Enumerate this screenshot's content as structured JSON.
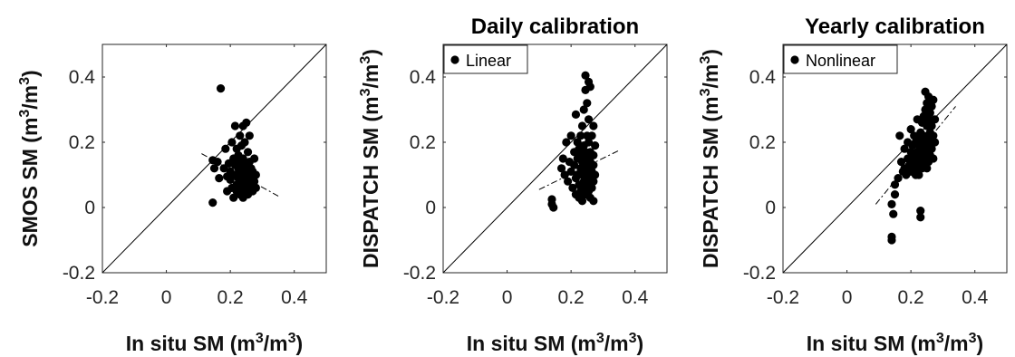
{
  "chart_data": [
    {
      "type": "scatter",
      "title": "",
      "xlabel": "In situ SM (m3/m3)",
      "xlabel_parts": {
        "base": "In situ SM (m",
        "sup1": "3",
        "mid": "/m",
        "sup2": "3",
        "end": ")"
      },
      "ylabel": "SMOS SM (m3/m3)",
      "ylabel_parts": {
        "base": "SMOS SM (m",
        "sup1": "3",
        "mid": "/m",
        "sup2": "3",
        "end": ")"
      },
      "xlim": [
        -0.2,
        0.5
      ],
      "ylim": [
        -0.2,
        0.5
      ],
      "xticks": [
        -0.2,
        0,
        0.2,
        0.4
      ],
      "xtick_labels": [
        "-0.2",
        "0",
        "0.2",
        "0.4"
      ],
      "yticks": [
        -0.2,
        0,
        0.2,
        0.4
      ],
      "ytick_labels": [
        "-0.2",
        "0",
        "0.2",
        "0.4"
      ],
      "grid": false,
      "legend": "",
      "one_to_one_line": true,
      "fit_line": {
        "x": [
          0.11,
          0.35
        ],
        "y": [
          0.165,
          0.035
        ]
      },
      "marker_color": "#000000",
      "points": [
        [
          0.17,
          0.365
        ],
        [
          0.145,
          0.015
        ],
        [
          0.145,
          0.145
        ],
        [
          0.15,
          0.12
        ],
        [
          0.16,
          0.14
        ],
        [
          0.165,
          0.09
        ],
        [
          0.18,
          0.12
        ],
        [
          0.185,
          0.18
        ],
        [
          0.19,
          0.095
        ],
        [
          0.19,
          0.05
        ],
        [
          0.195,
          0.135
        ],
        [
          0.2,
          0.085
        ],
        [
          0.2,
          0.11
        ],
        [
          0.205,
          0.2
        ],
        [
          0.205,
          0.06
        ],
        [
          0.21,
          0.15
        ],
        [
          0.21,
          0.03
        ],
        [
          0.215,
          0.25
        ],
        [
          0.215,
          0.1
        ],
        [
          0.215,
          0.13
        ],
        [
          0.22,
          0.07
        ],
        [
          0.22,
          0.18
        ],
        [
          0.22,
          0.05
        ],
        [
          0.225,
          0.12
        ],
        [
          0.225,
          0.09
        ],
        [
          0.225,
          0.16
        ],
        [
          0.23,
          0.1
        ],
        [
          0.23,
          0.04
        ],
        [
          0.23,
          0.22
        ],
        [
          0.23,
          0.14
        ],
        [
          0.235,
          0.08
        ],
        [
          0.235,
          0.19
        ],
        [
          0.235,
          0.06
        ],
        [
          0.24,
          0.25
        ],
        [
          0.24,
          0.11
        ],
        [
          0.24,
          0.03
        ],
        [
          0.24,
          0.15
        ],
        [
          0.245,
          0.07
        ],
        [
          0.245,
          0.13
        ],
        [
          0.245,
          0.2
        ],
        [
          0.25,
          0.09
        ],
        [
          0.25,
          0.05
        ],
        [
          0.25,
          0.26
        ],
        [
          0.25,
          0.12
        ],
        [
          0.255,
          0.17
        ],
        [
          0.255,
          0.08
        ],
        [
          0.255,
          0.04
        ],
        [
          0.26,
          0.1
        ],
        [
          0.26,
          0.14
        ],
        [
          0.26,
          0.06
        ],
        [
          0.26,
          0.22
        ],
        [
          0.265,
          0.09
        ],
        [
          0.265,
          0.12
        ],
        [
          0.27,
          0.07
        ],
        [
          0.27,
          0.05
        ],
        [
          0.27,
          0.11
        ],
        [
          0.275,
          0.08
        ],
        [
          0.275,
          0.15
        ],
        [
          0.28,
          0.1
        ],
        [
          0.28,
          0.06
        ]
      ]
    },
    {
      "type": "scatter",
      "title": "Daily calibration",
      "xlabel": "In situ SM (m3/m3)",
      "xlabel_parts": {
        "base": "In situ SM (m",
        "sup1": "3",
        "mid": "/m",
        "sup2": "3",
        "end": ")"
      },
      "ylabel": "DISPATCH SM (m3/m3)",
      "ylabel_parts": {
        "base": "DISPATCH SM (m",
        "sup1": "3",
        "mid": "/m",
        "sup2": "3",
        "end": ")"
      },
      "xlim": [
        -0.2,
        0.5
      ],
      "ylim": [
        -0.2,
        0.5
      ],
      "xticks": [
        -0.2,
        0,
        0.2,
        0.4
      ],
      "xtick_labels": [
        "-0.2",
        "0",
        "0.2",
        "0.4"
      ],
      "yticks": [
        -0.2,
        0,
        0.2,
        0.4
      ],
      "ytick_labels": [
        "-0.2",
        "0",
        "0.2",
        "0.4"
      ],
      "grid": false,
      "legend": "top-left",
      "legend_label": "Linear",
      "one_to_one_line": true,
      "fit_line": {
        "x": [
          0.1,
          0.35
        ],
        "y": [
          0.055,
          0.175
        ]
      },
      "marker_color": "#000000",
      "points": [
        [
          0.14,
          0.01
        ],
        [
          0.14,
          0.025
        ],
        [
          0.145,
          0.0
        ],
        [
          0.17,
          0.12
        ],
        [
          0.175,
          0.15
        ],
        [
          0.18,
          0.1
        ],
        [
          0.185,
          0.2
        ],
        [
          0.19,
          0.08
        ],
        [
          0.195,
          0.14
        ],
        [
          0.2,
          0.11
        ],
        [
          0.2,
          0.22
        ],
        [
          0.205,
          0.06
        ],
        [
          0.21,
          0.17
        ],
        [
          0.21,
          0.13
        ],
        [
          0.215,
          0.09
        ],
        [
          0.215,
          0.04
        ],
        [
          0.215,
          0.285
        ],
        [
          0.22,
          0.2
        ],
        [
          0.22,
          0.15
        ],
        [
          0.22,
          0.1
        ],
        [
          0.225,
          0.07
        ],
        [
          0.225,
          0.18
        ],
        [
          0.225,
          0.03
        ],
        [
          0.23,
          0.12
        ],
        [
          0.23,
          0.22
        ],
        [
          0.23,
          0.16
        ],
        [
          0.23,
          0.05
        ],
        [
          0.235,
          0.1
        ],
        [
          0.235,
          0.25
        ],
        [
          0.235,
          0.14
        ],
        [
          0.235,
          0.02
        ],
        [
          0.24,
          0.19
        ],
        [
          0.24,
          0.08
        ],
        [
          0.24,
          0.12
        ],
        [
          0.24,
          0.3
        ],
        [
          0.24,
          0.06
        ],
        [
          0.245,
          0.405
        ],
        [
          0.245,
          0.36
        ],
        [
          0.245,
          0.17
        ],
        [
          0.245,
          0.13
        ],
        [
          0.245,
          0.04
        ],
        [
          0.25,
          0.22
        ],
        [
          0.25,
          0.1
        ],
        [
          0.25,
          0.15
        ],
        [
          0.25,
          0.07
        ],
        [
          0.25,
          0.32
        ],
        [
          0.255,
          0.385
        ],
        [
          0.255,
          0.2
        ],
        [
          0.255,
          0.12
        ],
        [
          0.255,
          0.05
        ],
        [
          0.255,
          0.27
        ],
        [
          0.26,
          0.17
        ],
        [
          0.26,
          0.09
        ],
        [
          0.26,
          0.14
        ],
        [
          0.26,
          0.03
        ],
        [
          0.26,
          0.37
        ],
        [
          0.265,
          0.22
        ],
        [
          0.265,
          0.11
        ],
        [
          0.265,
          0.06
        ],
        [
          0.27,
          0.16
        ],
        [
          0.27,
          0.25
        ],
        [
          0.27,
          0.08
        ],
        [
          0.27,
          0.13
        ],
        [
          0.27,
          0.02
        ],
        [
          0.275,
          0.19
        ],
        [
          0.275,
          0.1
        ]
      ]
    },
    {
      "type": "scatter",
      "title": "Yearly calibration",
      "xlabel": "In situ SM (m3/m3)",
      "xlabel_parts": {
        "base": "In situ SM (m",
        "sup1": "3",
        "mid": "/m",
        "sup2": "3",
        "end": ")"
      },
      "ylabel": "DISPATCH SM (m3/m3)",
      "ylabel_parts": {
        "base": "DISPATCH SM (m",
        "sup1": "3",
        "mid": "/m",
        "sup2": "3",
        "end": ")"
      },
      "xlim": [
        -0.2,
        0.5
      ],
      "ylim": [
        -0.2,
        0.5
      ],
      "xticks": [
        -0.2,
        0,
        0.2,
        0.4
      ],
      "xtick_labels": [
        "-0.2",
        "0",
        "0.2",
        "0.4"
      ],
      "yticks": [
        -0.2,
        0,
        0.2,
        0.4
      ],
      "ytick_labels": [
        "-0.2",
        "0",
        "0.2",
        "0.4"
      ],
      "grid": false,
      "legend": "top-left",
      "legend_label": "Nonlinear",
      "one_to_one_line": true,
      "fit_line": {
        "x": [
          0.09,
          0.34
        ],
        "y": [
          0.01,
          0.31
        ]
      },
      "marker_color": "#000000",
      "points": [
        [
          0.14,
          -0.09
        ],
        [
          0.14,
          -0.1
        ],
        [
          0.145,
          -0.02
        ],
        [
          0.14,
          0.01
        ],
        [
          0.15,
          0.07
        ],
        [
          0.15,
          0.04
        ],
        [
          0.16,
          0.09
        ],
        [
          0.165,
          0.22
        ],
        [
          0.17,
          0.14
        ],
        [
          0.175,
          0.11
        ],
        [
          0.18,
          0.12
        ],
        [
          0.18,
          0.18
        ],
        [
          0.185,
          0.1
        ],
        [
          0.19,
          0.15
        ],
        [
          0.19,
          0.2
        ],
        [
          0.195,
          0.13
        ],
        [
          0.2,
          0.17
        ],
        [
          0.2,
          0.11
        ],
        [
          0.2,
          0.24
        ],
        [
          0.205,
          0.14
        ],
        [
          0.205,
          0.19
        ],
        [
          0.21,
          0.12
        ],
        [
          0.21,
          0.16
        ],
        [
          0.21,
          0.22
        ],
        [
          0.215,
          0.1
        ],
        [
          0.215,
          0.2
        ],
        [
          0.215,
          0.14
        ],
        [
          0.22,
          0.17
        ],
        [
          0.22,
          0.27
        ],
        [
          0.22,
          0.12
        ],
        [
          0.22,
          0.21
        ],
        [
          0.225,
          0.15
        ],
        [
          0.225,
          0.19
        ],
        [
          0.225,
          0.1
        ],
        [
          0.23,
          0.23
        ],
        [
          0.23,
          0.13
        ],
        [
          0.23,
          0.17
        ],
        [
          0.23,
          -0.03
        ],
        [
          0.23,
          -0.01
        ],
        [
          0.235,
          0.26
        ],
        [
          0.235,
          0.16
        ],
        [
          0.235,
          0.2
        ],
        [
          0.235,
          0.12
        ],
        [
          0.24,
          0.28
        ],
        [
          0.24,
          0.18
        ],
        [
          0.24,
          0.14
        ],
        [
          0.24,
          0.22
        ],
        [
          0.245,
          0.355
        ],
        [
          0.245,
          0.3
        ],
        [
          0.245,
          0.2
        ],
        [
          0.245,
          0.15
        ],
        [
          0.25,
          0.32
        ],
        [
          0.25,
          0.25
        ],
        [
          0.25,
          0.17
        ],
        [
          0.25,
          0.12
        ],
        [
          0.25,
          0.21
        ],
        [
          0.255,
          0.34
        ],
        [
          0.255,
          0.27
        ],
        [
          0.255,
          0.19
        ],
        [
          0.255,
          0.14
        ],
        [
          0.26,
          0.29
        ],
        [
          0.26,
          0.23
        ],
        [
          0.26,
          0.16
        ],
        [
          0.26,
          0.2
        ],
        [
          0.265,
          0.31
        ],
        [
          0.265,
          0.25
        ],
        [
          0.265,
          0.18
        ],
        [
          0.27,
          0.33
        ],
        [
          0.27,
          0.22
        ],
        [
          0.27,
          0.15
        ],
        [
          0.275,
          0.27
        ],
        [
          0.275,
          0.2
        ]
      ]
    }
  ]
}
